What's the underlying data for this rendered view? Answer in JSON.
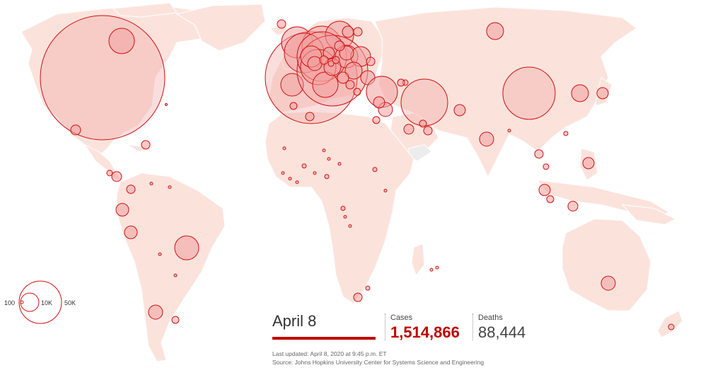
{
  "date": "April 8",
  "cases": {
    "label": "Cases",
    "value": "1,514,866"
  },
  "deaths": {
    "label": "Deaths",
    "value": "88,444"
  },
  "legend": {
    "small": "100",
    "medium": "10K",
    "large": "50K"
  },
  "last_updated": "Last updated: April 8, 2020 at 9:45 p.m. ET",
  "source": "Source: Johns Hopkins University Center for Systems Science and Engineering",
  "colors": {
    "land": "#fbe3dc",
    "bubble_fill": "#f2a0a0",
    "bubble_stroke": "#d01010",
    "accent": "#c00000"
  }
}
